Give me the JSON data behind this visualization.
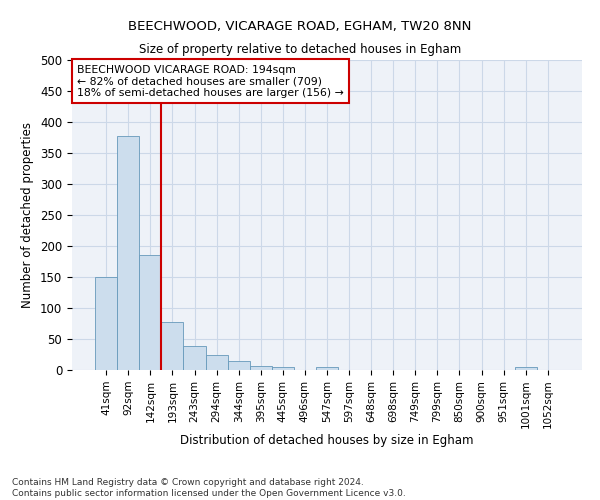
{
  "title1": "BEECHWOOD, VICARAGE ROAD, EGHAM, TW20 8NN",
  "title2": "Size of property relative to detached houses in Egham",
  "xlabel": "Distribution of detached houses by size in Egham",
  "ylabel": "Number of detached properties",
  "bar_labels": [
    "41sqm",
    "92sqm",
    "142sqm",
    "193sqm",
    "243sqm",
    "294sqm",
    "344sqm",
    "395sqm",
    "445sqm",
    "496sqm",
    "547sqm",
    "597sqm",
    "648sqm",
    "698sqm",
    "749sqm",
    "799sqm",
    "850sqm",
    "900sqm",
    "951sqm",
    "1001sqm",
    "1052sqm"
  ],
  "bar_values": [
    150,
    378,
    185,
    77,
    38,
    25,
    15,
    7,
    5,
    0,
    5,
    0,
    0,
    0,
    0,
    0,
    0,
    0,
    0,
    5,
    0
  ],
  "bar_color": "#ccdded",
  "bar_edge_color": "#6699bb",
  "vline_color": "#cc0000",
  "annotation_text": "BEECHWOOD VICARAGE ROAD: 194sqm\n← 82% of detached houses are smaller (709)\n18% of semi-detached houses are larger (156) →",
  "annotation_box_color": "#ffffff",
  "annotation_box_edge": "#cc0000",
  "grid_color": "#ccd8e8",
  "bg_color": "#eef2f8",
  "footer": "Contains HM Land Registry data © Crown copyright and database right 2024.\nContains public sector information licensed under the Open Government Licence v3.0.",
  "ylim": [
    0,
    500
  ],
  "yticks": [
    0,
    50,
    100,
    150,
    200,
    250,
    300,
    350,
    400,
    450,
    500
  ]
}
